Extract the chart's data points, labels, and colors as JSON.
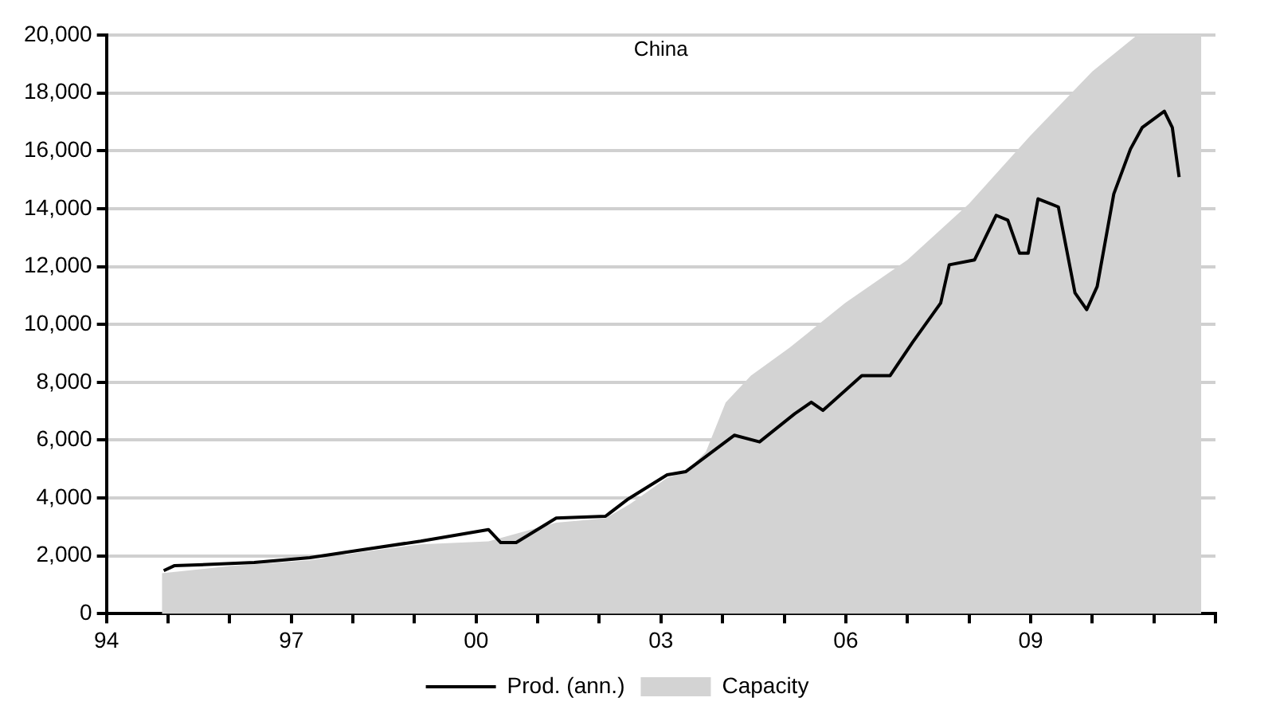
{
  "chart_data": {
    "type": "line",
    "title": "China",
    "xlim": [
      1994,
      2012
    ],
    "xticks": [
      {
        "value": 1994,
        "label": "94"
      },
      {
        "value": 1995,
        "label": null
      },
      {
        "value": 1996,
        "label": null
      },
      {
        "value": 1997,
        "label": "97"
      },
      {
        "value": 1998,
        "label": null
      },
      {
        "value": 1999,
        "label": null
      },
      {
        "value": 2000,
        "label": "00"
      },
      {
        "value": 2001,
        "label": null
      },
      {
        "value": 2002,
        "label": null
      },
      {
        "value": 2003,
        "label": "03"
      },
      {
        "value": 2004,
        "label": null
      },
      {
        "value": 2005,
        "label": null
      },
      {
        "value": 2006,
        "label": "06"
      },
      {
        "value": 2007,
        "label": null
      },
      {
        "value": 2008,
        "label": null
      },
      {
        "value": 2009,
        "label": "09"
      },
      {
        "value": 2010,
        "label": null
      },
      {
        "value": 2011,
        "label": null
      },
      {
        "value": 2012,
        "label": null
      }
    ],
    "ylim": [
      0,
      20000
    ],
    "yticks": [
      0,
      {
        "value": 2000,
        "label": "2,000"
      },
      {
        "value": 4000,
        "label": "4,000"
      },
      {
        "value": 6000,
        "label": "6,000"
      },
      {
        "value": 8000,
        "label": "8,000"
      },
      {
        "value": 10000,
        "label": "10,000"
      },
      {
        "value": 12000,
        "label": "12,000"
      },
      {
        "value": 14000,
        "label": "14,000"
      },
      {
        "value": 16000,
        "label": "16,000"
      },
      {
        "value": 18000,
        "label": "18,000"
      },
      {
        "value": 20000,
        "label": "20,000"
      }
    ],
    "grid": "y",
    "legend": "bottom",
    "series": [
      {
        "name": "Capacity",
        "type": "area",
        "color": "#d3d3d3",
        "x": [
          1994.9,
          1996,
          1997.3,
          1998.2,
          1999.1,
          2000.2,
          2001.3,
          2002.1,
          2002.5,
          2003.1,
          2003.4,
          2003.73,
          2004.05,
          2004.46,
          2005.09,
          2005.99,
          2007.0,
          2008.0,
          2008.99,
          2010.0,
          2010.73,
          2011.77
        ],
        "values": [
          1400,
          1650,
          1850,
          2150,
          2400,
          2500,
          3150,
          3300,
          3800,
          4700,
          4900,
          5600,
          7300,
          8230,
          9200,
          10740,
          12230,
          14170,
          16510,
          18740,
          20000,
          20000
        ]
      },
      {
        "name": "Prod. (ann.)",
        "type": "line",
        "color": "#000000",
        "x": [
          1994.93,
          1995.1,
          1996.4,
          1997.3,
          1998.2,
          1999.1,
          2000.2,
          2000.4,
          2000.65,
          2001.3,
          2002.1,
          2002.45,
          2003.1,
          2003.4,
          2004.19,
          2004.6,
          2005.17,
          2005.44,
          2005.63,
          2006.26,
          2006.72,
          2007.08,
          2007.54,
          2007.68,
          2008.09,
          2008.44,
          2008.63,
          2008.82,
          2008.96,
          2009.12,
          2009.45,
          2009.72,
          2009.91,
          2010.08,
          2010.35,
          2010.62,
          2010.81,
          2011.17,
          2011.3,
          2011.41
        ],
        "values": [
          1490,
          1660,
          1770,
          1940,
          2230,
          2510,
          2910,
          2460,
          2460,
          3310,
          3370,
          3940,
          4800,
          4910,
          6170,
          5940,
          6910,
          7310,
          7030,
          8230,
          8230,
          9370,
          10740,
          12060,
          12230,
          13770,
          13600,
          12460,
          12460,
          14340,
          14060,
          11090,
          10510,
          11310,
          14510,
          16060,
          16800,
          17370,
          16800,
          15090
        ]
      }
    ]
  }
}
